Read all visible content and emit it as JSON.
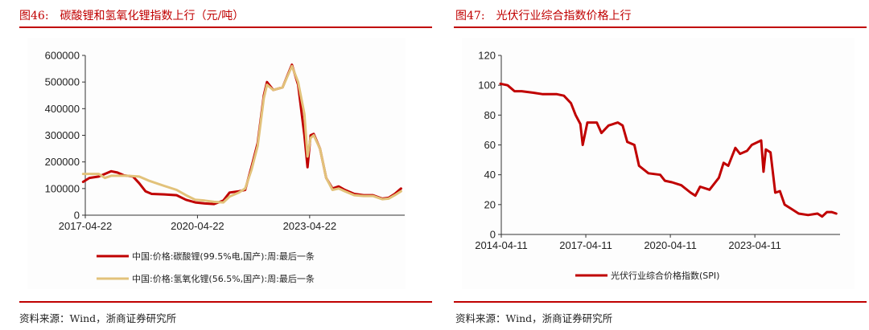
{
  "left": {
    "figure_number": "图46:",
    "title": "碳酸锂和氢氧化锂指数上行（元/吨）",
    "source": "资料来源：Wind，浙商证券研究所"
  },
  "right": {
    "figure_number": "图47:",
    "title": "光伏行业综合指数价格上行",
    "source": "资料来源：Wind，浙商证券研究所"
  },
  "colors": {
    "accent": "#c00000",
    "series_red": "#c00000",
    "series_gold": "#e2c27a"
  },
  "chart_data": [
    {
      "type": "line",
      "title": "碳酸锂和氢氧化锂指数上行（元/吨）",
      "xlabel": "",
      "ylabel": "元/吨",
      "ylim": [
        0,
        600000
      ],
      "yticks": [
        "0",
        "100000",
        "200000",
        "300000",
        "400000",
        "500000",
        "600000"
      ],
      "xticks": [
        "2017-04-22",
        "2020-04-22",
        "2023-04-22"
      ],
      "legend_position": "bottom",
      "grid": false,
      "x_range": [
        "2017-04-22",
        "2024-04"
      ],
      "series": [
        {
          "name": "中国:价格:碳酸锂(99.5%电,国产):周:最后一条",
          "color": "#c00000",
          "points": [
            [
              "2017-04",
              125000
            ],
            [
              "2017-06",
              140000
            ],
            [
              "2017-09",
              145000
            ],
            [
              "2017-11",
              155000
            ],
            [
              "2018-01",
              165000
            ],
            [
              "2018-03",
              160000
            ],
            [
              "2018-05",
              150000
            ],
            [
              "2018-08",
              145000
            ],
            [
              "2018-10",
              120000
            ],
            [
              "2018-12",
              90000
            ],
            [
              "2019-02",
              80000
            ],
            [
              "2019-06",
              78000
            ],
            [
              "2019-10",
              75000
            ],
            [
              "2020-01",
              58000
            ],
            [
              "2020-04",
              48000
            ],
            [
              "2020-07",
              44000
            ],
            [
              "2020-10",
              42000
            ],
            [
              "2021-01",
              55000
            ],
            [
              "2021-03",
              85000
            ],
            [
              "2021-06",
              90000
            ],
            [
              "2021-08",
              95000
            ],
            [
              "2021-10",
              180000
            ],
            [
              "2021-12",
              270000
            ],
            [
              "2022-02",
              450000
            ],
            [
              "2022-03",
              500000
            ],
            [
              "2022-05",
              470000
            ],
            [
              "2022-08",
              480000
            ],
            [
              "2022-11",
              565000
            ],
            [
              "2023-01",
              490000
            ],
            [
              "2023-03",
              300000
            ],
            [
              "2023-04",
              180000
            ],
            [
              "2023-05",
              300000
            ],
            [
              "2023-06",
              305000
            ],
            [
              "2023-08",
              250000
            ],
            [
              "2023-10",
              140000
            ],
            [
              "2023-12",
              100000
            ],
            [
              "2024-02",
              108000
            ],
            [
              "2024-04",
              95000
            ],
            [
              "2024-07",
              80000
            ],
            [
              "2024-10",
              75000
            ],
            [
              "2025-01",
              75000
            ],
            [
              "2025-04",
              62000
            ],
            [
              "2025-06",
              65000
            ],
            [
              "2025-08",
              80000
            ],
            [
              "2025-10",
              100000
            ]
          ]
        },
        {
          "name": "中国:价格:氢氧化锂(56.5%,国产):周:最后一条",
          "color": "#e2c27a",
          "points": [
            [
              "2017-04",
              155000
            ],
            [
              "2017-09",
              155000
            ],
            [
              "2017-11",
              140000
            ],
            [
              "2018-01",
              148000
            ],
            [
              "2018-06",
              148000
            ],
            [
              "2018-10",
              145000
            ],
            [
              "2019-01",
              130000
            ],
            [
              "2019-06",
              110000
            ],
            [
              "2019-10",
              95000
            ],
            [
              "2020-01",
              75000
            ],
            [
              "2020-04",
              58000
            ],
            [
              "2020-07",
              55000
            ],
            [
              "2020-10",
              50000
            ],
            [
              "2021-01",
              48000
            ],
            [
              "2021-03",
              70000
            ],
            [
              "2021-06",
              85000
            ],
            [
              "2021-08",
              100000
            ],
            [
              "2021-10",
              170000
            ],
            [
              "2021-12",
              260000
            ],
            [
              "2022-02",
              440000
            ],
            [
              "2022-03",
              490000
            ],
            [
              "2022-05",
              470000
            ],
            [
              "2022-08",
              480000
            ],
            [
              "2022-11",
              560000
            ],
            [
              "2023-01",
              500000
            ],
            [
              "2023-03",
              380000
            ],
            [
              "2023-04",
              220000
            ],
            [
              "2023-05",
              290000
            ],
            [
              "2023-06",
              300000
            ],
            [
              "2023-08",
              250000
            ],
            [
              "2023-10",
              140000
            ],
            [
              "2023-12",
              95000
            ],
            [
              "2024-02",
              100000
            ],
            [
              "2024-04",
              90000
            ],
            [
              "2024-07",
              75000
            ],
            [
              "2024-10",
              72000
            ],
            [
              "2025-01",
              72000
            ],
            [
              "2025-04",
              60000
            ],
            [
              "2025-06",
              62000
            ],
            [
              "2025-08",
              75000
            ],
            [
              "2025-10",
              90000
            ]
          ]
        }
      ]
    },
    {
      "type": "line",
      "title": "光伏行业综合指数价格上行",
      "xlabel": "",
      "ylabel": "",
      "ylim": [
        0,
        120
      ],
      "yticks": [
        "0",
        "20",
        "40",
        "60",
        "80",
        "100",
        "120"
      ],
      "xticks": [
        "2014-04-11",
        "2017-04-11",
        "2020-04-11",
        "2023-04-11"
      ],
      "legend_position": "bottom",
      "grid": false,
      "series": [
        {
          "name": "光伏行业综合价格指数(SPI)",
          "color": "#c00000",
          "points": [
            [
              "2014-04",
              101
            ],
            [
              "2014-07",
              100
            ],
            [
              "2014-10",
              96
            ],
            [
              "2015-01",
              96
            ],
            [
              "2015-06",
              95
            ],
            [
              "2015-10",
              94
            ],
            [
              "2016-04",
              94
            ],
            [
              "2016-07",
              93
            ],
            [
              "2016-10",
              88
            ],
            [
              "2016-12",
              80
            ],
            [
              "2017-02",
              74
            ],
            [
              "2017-03",
              60
            ],
            [
              "2017-05",
              75
            ],
            [
              "2017-09",
              75
            ],
            [
              "2017-11",
              68
            ],
            [
              "2018-02",
              73
            ],
            [
              "2018-06",
              75
            ],
            [
              "2018-08",
              73
            ],
            [
              "2018-10",
              62
            ],
            [
              "2019-01",
              60
            ],
            [
              "2019-03",
              46
            ],
            [
              "2019-07",
              41
            ],
            [
              "2019-12",
              40
            ],
            [
              "2020-02",
              36
            ],
            [
              "2020-05",
              35
            ],
            [
              "2020-09",
              33
            ],
            [
              "2021-01",
              28
            ],
            [
              "2021-03",
              26
            ],
            [
              "2021-05",
              32
            ],
            [
              "2021-09",
              30
            ],
            [
              "2022-01",
              38
            ],
            [
              "2022-03",
              48
            ],
            [
              "2022-05",
              46
            ],
            [
              "2022-08",
              58
            ],
            [
              "2022-10",
              54
            ],
            [
              "2023-01",
              56
            ],
            [
              "2023-03",
              60
            ],
            [
              "2023-07",
              63
            ],
            [
              "2023-08",
              42
            ],
            [
              "2023-09",
              57
            ],
            [
              "2023-11",
              55
            ],
            [
              "2024-01",
              28
            ],
            [
              "2024-03",
              29
            ],
            [
              "2024-05",
              20
            ],
            [
              "2024-08",
              17
            ],
            [
              "2024-11",
              14
            ],
            [
              "2025-03",
              13
            ],
            [
              "2025-07",
              14
            ],
            [
              "2025-09",
              12
            ],
            [
              "2025-11",
              15
            ],
            [
              "2026-01",
              15
            ],
            [
              "2026-03",
              14
            ]
          ]
        }
      ]
    }
  ]
}
